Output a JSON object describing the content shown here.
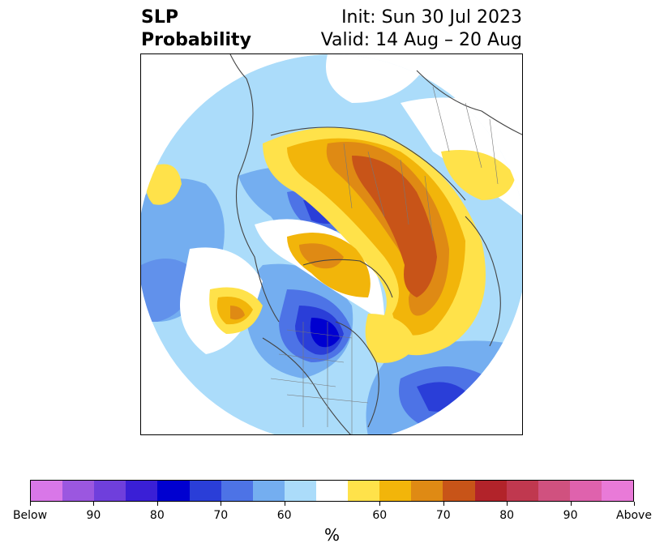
{
  "title": {
    "left_line1": "SLP",
    "left_line2": "Probability",
    "init": "Init: Sun 30 Jul 2023",
    "valid": "Valid: 14 Aug – 20 Aug"
  },
  "colorbar": {
    "colors": [
      "#d977e8",
      "#9b57e0",
      "#6f3fdc",
      "#3a1fd6",
      "#0000d0",
      "#2a3ed8",
      "#4d73e6",
      "#74aef0",
      "#abdcfa",
      "#ffffff",
      "#ffe24a",
      "#f2b50a",
      "#df8a14",
      "#c85418",
      "#b2232a",
      "#c0384f",
      "#d0517f",
      "#df62ad",
      "#e97ad8"
    ],
    "labels": [
      "Below",
      "90",
      "80",
      "70",
      "60",
      "60",
      "70",
      "80",
      "90",
      "Above"
    ],
    "unit": "%"
  }
}
